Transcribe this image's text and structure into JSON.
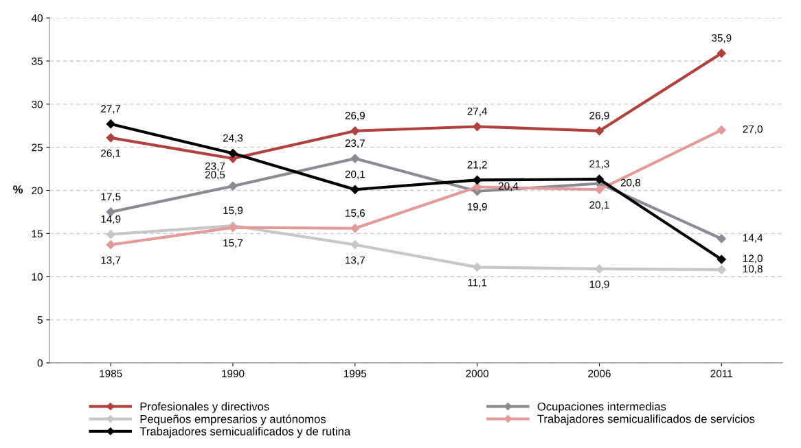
{
  "chart_data": {
    "type": "line",
    "ylabel": "%",
    "categories": [
      "1985",
      "1990",
      "1995",
      "2000",
      "2006",
      "2011"
    ],
    "ylim": [
      0,
      40
    ],
    "yticks": [
      0,
      5,
      10,
      15,
      20,
      25,
      30,
      35,
      40
    ],
    "grid": "y",
    "legend": "bottom",
    "marker": "diamond",
    "line_style": "solid",
    "series": [
      {
        "name": "Profesionales y directivos",
        "color": "#b0413e",
        "values": [
          26.1,
          23.7,
          26.9,
          27.4,
          26.9,
          35.9
        ],
        "value_labels": [
          "26,1",
          "23,7",
          "26,9",
          "27,4",
          "26,9",
          "35,9"
        ]
      },
      {
        "name": "Ocupaciones intermedias",
        "color": "#8b8b94",
        "values": [
          17.5,
          20.5,
          23.7,
          19.9,
          20.8,
          14.4
        ],
        "value_labels": [
          "17,5",
          "20,5",
          "23,7",
          "19,9",
          "20,8",
          "14,4"
        ]
      },
      {
        "name": "Pequeños empresarios y autónomos",
        "color": "#c6c7cb",
        "values": [
          14.9,
          15.9,
          13.7,
          11.1,
          10.9,
          10.8
        ],
        "value_labels": [
          "14,9",
          "15,9",
          "13,7",
          "11,1",
          "10,9",
          "10,8"
        ]
      },
      {
        "name": "Trabajadores semicualificados de servicios",
        "color": "#e29a9a",
        "values": [
          13.7,
          15.7,
          15.6,
          20.4,
          20.1,
          27.0
        ],
        "value_labels": [
          "13,7",
          "15,7",
          "15,6",
          "20,4",
          "20,1",
          "27,0"
        ]
      },
      {
        "name": "Trabajadores semicualificados y de rutina",
        "color": "#000000",
        "values": [
          27.7,
          24.3,
          20.1,
          21.2,
          21.3,
          12.0
        ],
        "value_labels": [
          "27,7",
          "24,3",
          "20,1",
          "21,2",
          "21,3",
          "12,0"
        ]
      }
    ]
  }
}
